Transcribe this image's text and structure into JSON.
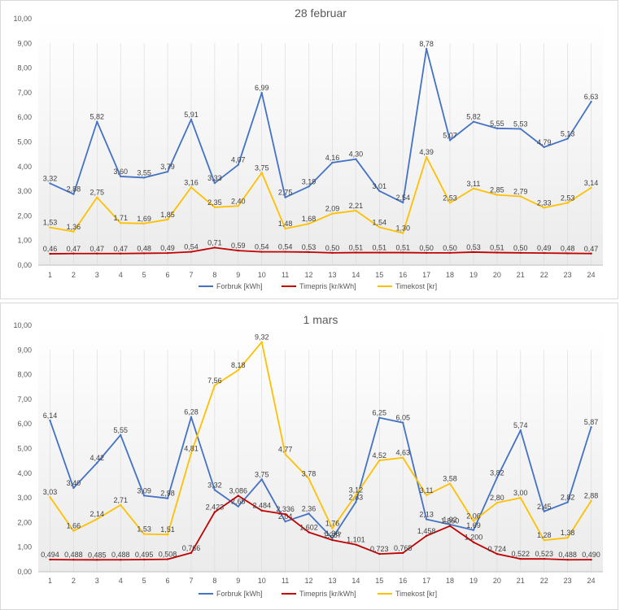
{
  "colors": {
    "forbruk": "#4472C4",
    "timepris": "#C00000",
    "timekost": "#FFC000",
    "grid": "#d9d9d9",
    "axis_text": "#595959"
  },
  "chart_data": [
    {
      "type": "line",
      "title": "28 februar",
      "categories": [
        "1",
        "2",
        "3",
        "4",
        "5",
        "6",
        "7",
        "8",
        "9",
        "10",
        "11",
        "12",
        "13",
        "14",
        "15",
        "16",
        "17",
        "18",
        "19",
        "20",
        "21",
        "22",
        "23",
        "24"
      ],
      "y_ticks": [
        "0,00",
        "1,00",
        "2,00",
        "3,00",
        "4,00",
        "5,00",
        "6,00",
        "7,00",
        "8,00",
        "9,00",
        "10,00"
      ],
      "ylim": [
        0,
        10
      ],
      "legend_position": "bottom",
      "series": [
        {
          "name": "Forbruk [kWh]",
          "color_key": "forbruk",
          "values": [
            3.32,
            2.88,
            5.82,
            3.6,
            3.55,
            3.79,
            5.91,
            3.33,
            4.07,
            6.99,
            2.75,
            3.19,
            4.16,
            4.3,
            3.01,
            2.54,
            8.78,
            5.07,
            5.82,
            5.55,
            5.53,
            4.79,
            5.13,
            6.63
          ],
          "labels": [
            "3,32",
            "2,88",
            "5,82",
            "3,60",
            "3,55",
            "3,79",
            "5,91",
            "3,33",
            "4,07",
            "6,99",
            "2,75",
            "3,19",
            "4,16",
            "4,30",
            "3,01",
            "2,54",
            "8,78",
            "5,07",
            "5,82",
            "5,55",
            "5,53",
            "4,79",
            "5,13",
            "6,63"
          ]
        },
        {
          "name": "Timepris [kr/kWh]",
          "color_key": "timepris",
          "values": [
            0.46,
            0.47,
            0.47,
            0.47,
            0.48,
            0.49,
            0.54,
            0.71,
            0.59,
            0.54,
            0.54,
            0.53,
            0.5,
            0.51,
            0.51,
            0.51,
            0.5,
            0.5,
            0.53,
            0.51,
            0.5,
            0.49,
            0.48,
            0.47
          ],
          "labels": [
            "0,46",
            "0,47",
            "0,47",
            "0,47",
            "0,48",
            "0,49",
            "0,54",
            "0,71",
            "0,59",
            "0,54",
            "0,54",
            "0,53",
            "0,50",
            "0,51",
            "0,51",
            "0,51",
            "0,50",
            "0,50",
            "0,53",
            "0,51",
            "0,50",
            "0,49",
            "0,48",
            "0,47"
          ]
        },
        {
          "name": "Timekost [kr]",
          "color_key": "timekost",
          "values": [
            1.53,
            1.36,
            2.75,
            1.71,
            1.69,
            1.85,
            3.16,
            2.35,
            2.4,
            3.75,
            1.48,
            1.68,
            2.09,
            2.21,
            1.54,
            1.3,
            4.39,
            2.53,
            3.11,
            2.85,
            2.79,
            2.33,
            2.53,
            3.14
          ],
          "labels": [
            "1,53",
            "1,36",
            "2,75",
            "1,71",
            "1,69",
            "1,85",
            "3,16",
            "2,35",
            "2,40",
            "3,75",
            "1,48",
            "1,68",
            "2,09",
            "2,21",
            "1,54",
            "1,30",
            "4,39",
            "2,53",
            "3,11",
            "2,85",
            "2,79",
            "2,33",
            "2,53",
            "3,14"
          ]
        }
      ]
    },
    {
      "type": "line",
      "title": "1 mars",
      "categories": [
        "1",
        "2",
        "3",
        "4",
        "5",
        "6",
        "7",
        "8",
        "9",
        "10",
        "11",
        "12",
        "13",
        "14",
        "15",
        "16",
        "17",
        "18",
        "19",
        "20",
        "21",
        "22",
        "23",
        "24"
      ],
      "y_ticks": [
        "0,00",
        "1,00",
        "2,00",
        "3,00",
        "4,00",
        "5,00",
        "6,00",
        "7,00",
        "8,00",
        "9,00",
        "10,00"
      ],
      "ylim": [
        0,
        10
      ],
      "legend_position": "bottom",
      "series": [
        {
          "name": "Forbruk [kWh]",
          "color_key": "forbruk",
          "values": [
            6.14,
            3.4,
            4.42,
            5.55,
            3.09,
            2.98,
            6.28,
            3.32,
            2.65,
            3.75,
            2.04,
            2.36,
            1.36,
            2.83,
            6.25,
            6.05,
            2.13,
            1.92,
            1.69,
            3.82,
            5.74,
            2.45,
            2.82,
            5.87
          ],
          "labels": [
            "6,14",
            "3,40",
            "4,42",
            "5,55",
            "3,09",
            "2,98",
            "6,28",
            "3,32",
            "2,65",
            "3,75",
            "2,04",
            "2,36",
            "1,36",
            "2,83",
            "6,25",
            "6,05",
            "2,13",
            "1,92",
            "1,69",
            "3,82",
            "5,74",
            "2,45",
            "2,82",
            "5,87"
          ]
        },
        {
          "name": "Timepris [kr/kWh]",
          "color_key": "timepris",
          "values": [
            0.494,
            0.488,
            0.485,
            0.488,
            0.495,
            0.508,
            0.766,
            2.423,
            3.086,
            2.484,
            2.336,
            1.602,
            1.287,
            1.101,
            0.723,
            0.765,
            1.458,
            1.86,
            1.2,
            0.724,
            0.522,
            0.523,
            0.488,
            0.49
          ],
          "labels": [
            "0,494",
            "0,488",
            "0,485",
            "0,488",
            "0,495",
            "0,508",
            "0,766",
            "2,423",
            "3,086",
            "2,484",
            "2,336",
            "1,602",
            "1,287",
            "1,101",
            "0,723",
            "0,765",
            "1,458",
            "1,860",
            "1,200",
            "0,724",
            "0,522",
            "0,523",
            "0,488",
            "0,490"
          ]
        },
        {
          "name": "Timekost [kr]",
          "color_key": "timekost",
          "values": [
            3.03,
            1.66,
            2.14,
            2.71,
            1.53,
            1.51,
            4.81,
            7.56,
            8.18,
            9.32,
            4.77,
            3.78,
            1.76,
            3.12,
            4.52,
            4.63,
            3.11,
            3.58,
            2.06,
            2.8,
            3.0,
            1.28,
            1.38,
            2.88
          ],
          "labels": [
            "3,03",
            "1,66",
            "2,14",
            "2,71",
            "1,53",
            "1,51",
            "4,81",
            "7,56",
            "8,18",
            "9,32",
            "4,77",
            "3,78",
            "1,76",
            "3,12",
            "4,52",
            "4,63",
            "3,11",
            "3,58",
            "2,06",
            "2,80",
            "3,00",
            "1,28",
            "1,38",
            "2,88"
          ]
        }
      ]
    }
  ]
}
